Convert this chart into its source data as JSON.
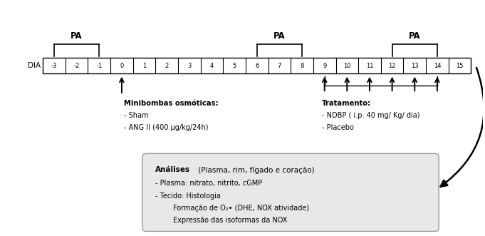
{
  "days": [
    "-3",
    "-2",
    "-1",
    "0",
    "1",
    "2",
    "3",
    "4",
    "5",
    "6",
    "7",
    "8",
    "9",
    "10",
    "11",
    "12",
    "13",
    "14",
    "15"
  ],
  "dia_label": "DIA",
  "pa_brackets": [
    {
      "label": "PA",
      "x_start": "-3",
      "x_end": "-1"
    },
    {
      "label": "PA",
      "x_start": "6",
      "x_end": "8"
    },
    {
      "label": "PA",
      "x_start": "12",
      "x_end": "14"
    }
  ],
  "arrow_up_day0": "0",
  "treatment_arrows": [
    "9",
    "10",
    "11",
    "12",
    "13",
    "14"
  ],
  "minibombas_title": "Minibombas osmóticas:",
  "minibombas_items": [
    "- Sham",
    "- ANG II (400 μg/kg/24h)"
  ],
  "tratamento_title": "Tratamento:",
  "tratamento_items": [
    "- NDBP ( i.p. 40 mg/ Kg/ dia)",
    "- Placebo"
  ],
  "analises_bold": "Análises",
  "analises_normal": " (Plasma, rim, fígado e coração)",
  "analises_items": [
    "- Plasma: nitrato, nitrito, cGMP",
    "- Tecido: Histologia",
    "        Formação de O₂• (DHE, NOX atividade)",
    "        Expressão das isoformas da NOX"
  ],
  "box_bg": "#e8e8e8",
  "box_edge": "#999999",
  "bg": "#ffffff"
}
